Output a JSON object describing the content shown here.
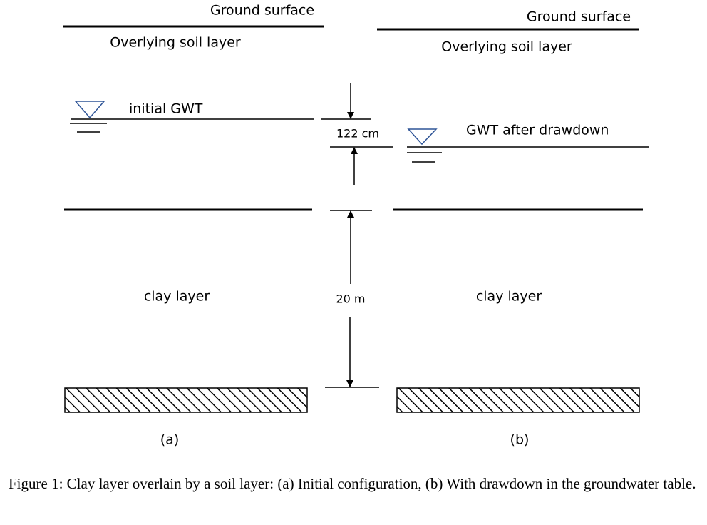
{
  "panels": [
    {
      "ground_label": "Ground surface",
      "soil_label": "Overlying soil layer",
      "gwt_label": "initial GWT",
      "clay_label": "clay layer",
      "tag": "(a)"
    },
    {
      "ground_label": "Ground surface",
      "soil_label": "Overlying soil layer",
      "gwt_label": "GWT after drawdown",
      "clay_label": "clay layer",
      "tag": "(b)"
    }
  ],
  "dimensions": {
    "drawdown": "122 cm",
    "clay_thickness": "20 m"
  },
  "caption": "Figure 1: Clay layer overlain by a soil layer: (a) Initial configuration, (b) With drawdown in the groundwater table."
}
